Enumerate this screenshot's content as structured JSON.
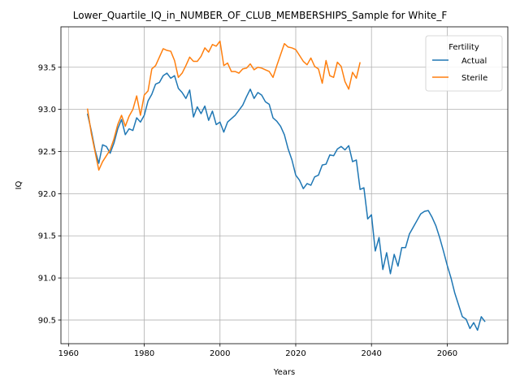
{
  "chart_data": {
    "type": "line",
    "title": "Lower_Quartile_IQ_in_NUMBER_OF_CLUB_MEMBERSHIPS_Sample for White_F",
    "xlabel": "Years",
    "ylabel": "IQ",
    "xlim": [
      1958,
      2076
    ],
    "ylim": [
      90.22,
      93.98
    ],
    "xticks": [
      1960,
      1980,
      2000,
      2020,
      2040,
      2060
    ],
    "yticks": [
      90.5,
      91.0,
      91.5,
      92.0,
      92.5,
      93.0,
      93.5
    ],
    "ytick_labels": [
      "90.5",
      "91.0",
      "91.5",
      "92.0",
      "92.5",
      "93.0",
      "93.5"
    ],
    "grid": true,
    "legend": {
      "title": "Fertility",
      "placement": "top-right"
    },
    "series": [
      {
        "name": "Actual",
        "color": "#1f77b4",
        "x": [
          1965,
          1966,
          1967,
          1968,
          1969,
          1970,
          1971,
          1972,
          1973,
          1974,
          1975,
          1976,
          1977,
          1978,
          1979,
          1980,
          1981,
          1982,
          1983,
          1984,
          1985,
          1986,
          1987,
          1988,
          1989,
          1990,
          1991,
          1992,
          1993,
          1994,
          1995,
          1996,
          1997,
          1998,
          1999,
          2000,
          2001,
          2002,
          2003,
          2004,
          2005,
          2006,
          2007,
          2008,
          2009,
          2010,
          2011,
          2012,
          2013,
          2014,
          2015,
          2016,
          2017,
          2018,
          2019,
          2020,
          2021,
          2022,
          2023,
          2024,
          2025,
          2026,
          2027,
          2028,
          2029,
          2030,
          2031,
          2032,
          2033,
          2034,
          2035,
          2036,
          2037,
          2038,
          2039,
          2040,
          2041,
          2042,
          2043,
          2044,
          2045,
          2046,
          2047,
          2048,
          2049,
          2050,
          2051,
          2052,
          2053,
          2054,
          2055,
          2056,
          2057,
          2058,
          2059,
          2060,
          2061,
          2062,
          2063,
          2064,
          2065,
          2066,
          2067,
          2068,
          2069,
          2070
        ],
        "y": [
          92.95,
          92.75,
          92.52,
          92.36,
          92.58,
          92.56,
          92.48,
          92.6,
          92.77,
          92.88,
          92.7,
          92.77,
          92.75,
          92.9,
          92.85,
          92.93,
          93.1,
          93.18,
          93.3,
          93.32,
          93.4,
          93.43,
          93.37,
          93.4,
          93.25,
          93.2,
          93.13,
          93.23,
          92.91,
          93.03,
          92.95,
          93.04,
          92.87,
          92.98,
          92.82,
          92.85,
          92.73,
          92.85,
          92.89,
          92.93,
          92.99,
          93.05,
          93.15,
          93.24,
          93.13,
          93.2,
          93.17,
          93.09,
          93.06,
          92.9,
          92.86,
          92.8,
          92.7,
          92.53,
          92.4,
          92.22,
          92.16,
          92.06,
          92.12,
          92.1,
          92.2,
          92.22,
          92.34,
          92.35,
          92.46,
          92.45,
          92.53,
          92.56,
          92.52,
          92.57,
          92.38,
          92.4,
          92.05,
          92.07,
          91.7,
          91.75,
          91.32,
          91.48,
          91.1,
          91.3,
          91.05,
          91.28,
          91.14,
          91.36,
          91.36,
          91.52,
          91.6,
          91.68,
          91.76,
          91.79,
          91.8,
          91.72,
          91.62,
          91.48,
          91.32,
          91.15,
          91.0,
          90.82,
          90.68,
          90.54,
          90.51,
          90.4,
          90.47,
          90.38,
          90.54,
          90.48
        ]
      },
      {
        "name": "Sterile",
        "color": "#ff7f0e",
        "x": [
          1965,
          1966,
          1967,
          1968,
          1969,
          1970,
          1971,
          1972,
          1973,
          1974,
          1975,
          1976,
          1977,
          1978,
          1979,
          1980,
          1981,
          1982,
          1983,
          1984,
          1985,
          1986,
          1987,
          1988,
          1989,
          1990,
          1991,
          1992,
          1993,
          1994,
          1995,
          1996,
          1997,
          1998,
          1999,
          2000,
          2001,
          2002,
          2003,
          2004,
          2005,
          2006,
          2007,
          2008,
          2009,
          2010,
          2011,
          2012,
          2013,
          2014,
          2015,
          2016,
          2017,
          2018,
          2019,
          2020,
          2021,
          2022,
          2023,
          2024,
          2025,
          2026,
          2027,
          2028,
          2029,
          2030,
          2031,
          2032,
          2033,
          2034,
          2035,
          2036,
          2037
        ],
        "y": [
          93.01,
          92.72,
          92.5,
          92.28,
          92.38,
          92.45,
          92.52,
          92.65,
          92.82,
          92.93,
          92.8,
          92.92,
          93.0,
          93.16,
          92.93,
          93.17,
          93.22,
          93.48,
          93.52,
          93.62,
          93.72,
          93.7,
          93.69,
          93.58,
          93.38,
          93.43,
          93.52,
          93.62,
          93.57,
          93.57,
          93.63,
          93.73,
          93.68,
          93.77,
          93.75,
          93.81,
          93.52,
          93.55,
          93.45,
          93.45,
          93.43,
          93.48,
          93.49,
          93.54,
          93.47,
          93.5,
          93.49,
          93.47,
          93.45,
          93.38,
          93.52,
          93.65,
          93.78,
          93.74,
          93.73,
          93.71,
          93.64,
          93.57,
          93.53,
          93.61,
          93.51,
          93.48,
          93.31,
          93.58,
          93.4,
          93.38,
          93.56,
          93.51,
          93.33,
          93.24,
          93.44,
          93.37,
          93.56
        ]
      }
    ]
  }
}
